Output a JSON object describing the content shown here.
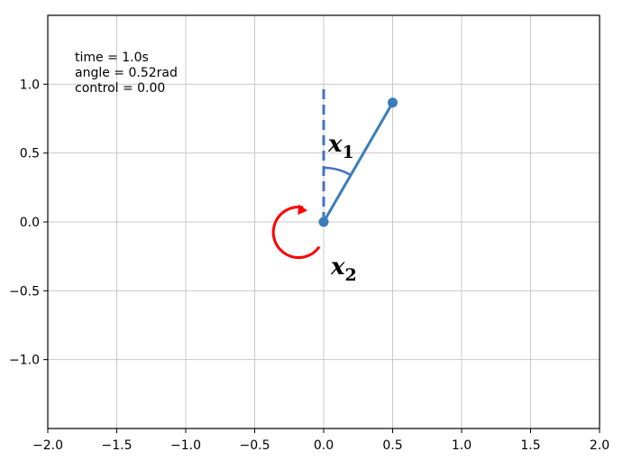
{
  "chart_data": {
    "type": "line",
    "xlim": [
      -2.0,
      2.0
    ],
    "ylim": [
      -1.5,
      1.5
    ],
    "grid": true,
    "x_ticks": [
      -2.0,
      -1.5,
      -1.0,
      -0.5,
      0.0,
      0.5,
      1.0,
      1.5,
      2.0
    ],
    "x_tick_labels": [
      "−2.0",
      "−1.5",
      "−1.0",
      "−0.5",
      "0.0",
      "0.5",
      "1.0",
      "1.5",
      "2.0"
    ],
    "y_ticks": [
      1.0,
      0.5,
      0.0,
      -0.5,
      -1.0
    ],
    "y_tick_labels": [
      "1.0",
      "0.5",
      "0.0",
      "−0.5",
      "−1.0"
    ],
    "info_lines": [
      "time = 1.0s",
      "angle = 0.52rad",
      "control = 0.00"
    ],
    "pivot": [
      0.0,
      0.0
    ],
    "bob": [
      0.5,
      0.866
    ],
    "reference_top": [
      0.0,
      1.0
    ],
    "angle_rad": 0.52,
    "angle_label": {
      "base": "x",
      "sub": "1"
    },
    "rate_label": {
      "base": "x",
      "sub": "2"
    },
    "colors": {
      "pendulum": "#3a7dba",
      "reference": "#4472c4",
      "angle_arc": "#4472c4",
      "rate_arrow": "#ff0000",
      "grid": "#c8c8c8",
      "axes": "#000000"
    }
  }
}
